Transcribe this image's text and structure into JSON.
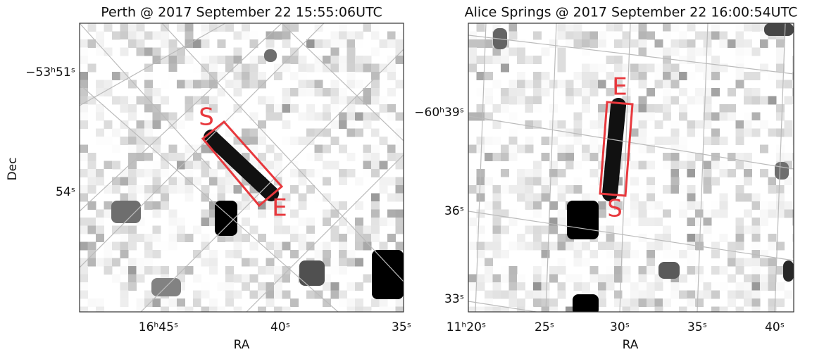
{
  "panels": [
    {
      "title": "Perth @ 2017 September 22 15:55:06UTC",
      "x_label": "RA",
      "y_label": "Dec",
      "x_ticks": [
        "16ʰ45ˢ",
        "40ˢ",
        "35ˢ"
      ],
      "y_ticks": [
        "−53ʰ51ˢ",
        "54ˢ"
      ],
      "box_labels": [
        "S",
        "E"
      ]
    },
    {
      "title": "Alice Springs @ 2017 September 22 16:00:54UTC",
      "x_label": "RA",
      "x_ticks": [
        "11ʰ20ˢ",
        "25ˢ",
        "30ˢ",
        "35ˢ",
        "40ˢ"
      ],
      "y_ticks": [
        "−60ʰ39ˢ",
        "36ˢ",
        "33ˢ"
      ],
      "box_labels": [
        "E",
        "S"
      ]
    }
  ]
}
